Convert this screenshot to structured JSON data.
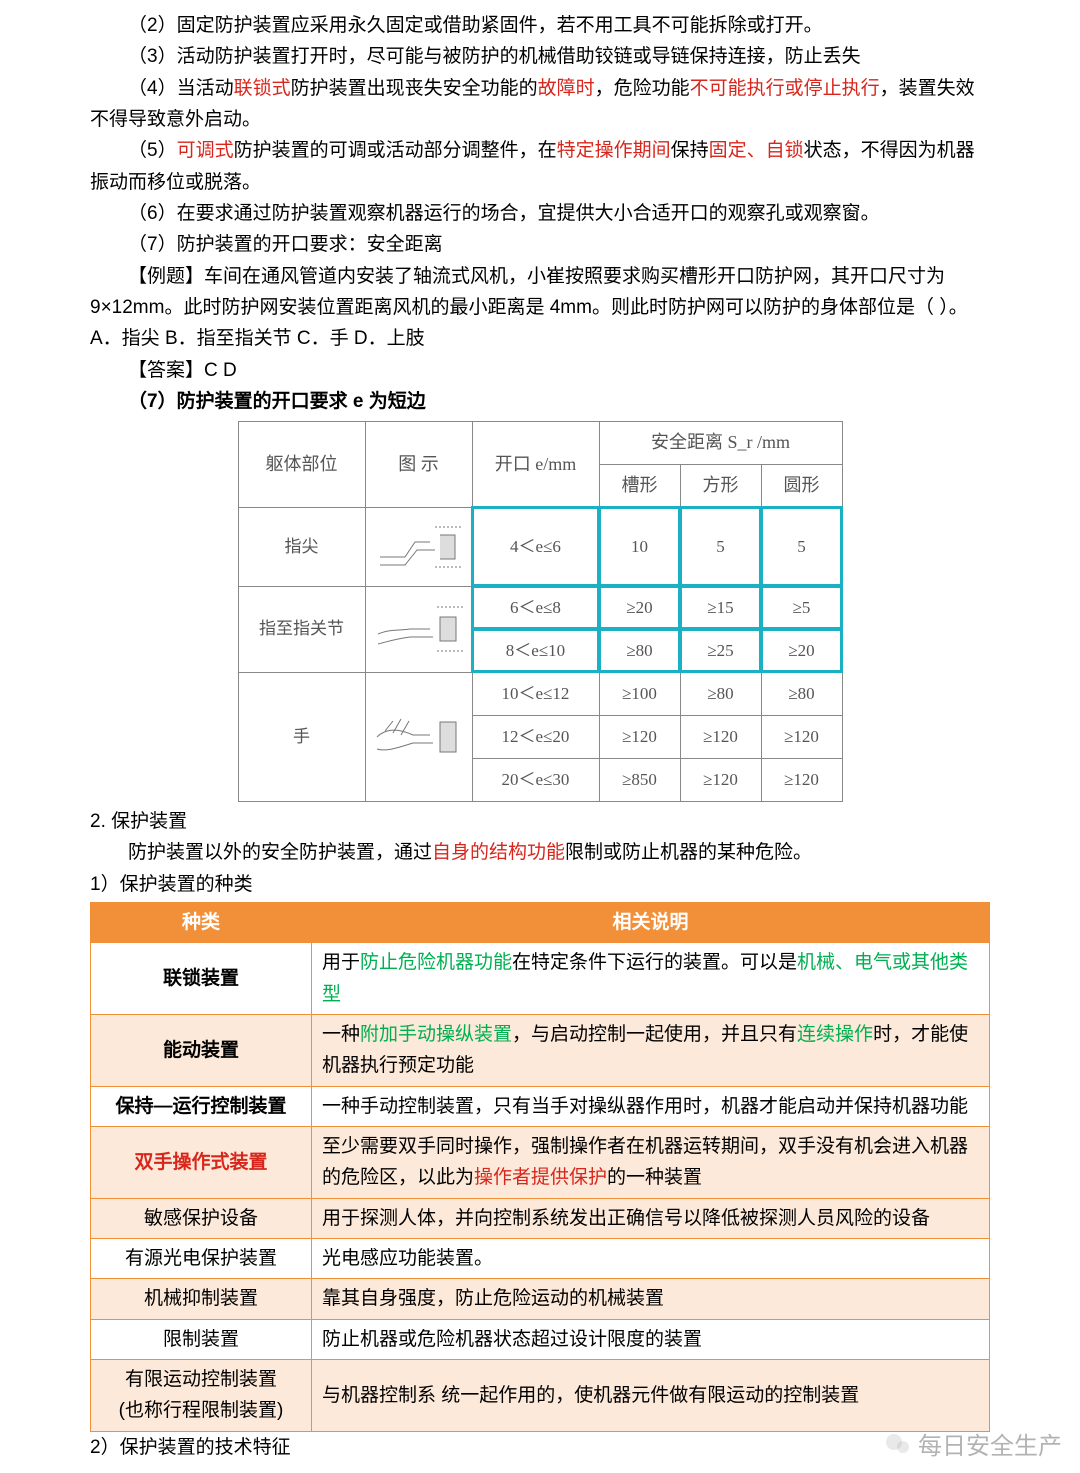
{
  "paragraphs": {
    "p2": "（2）固定防护装置应采用永久固定或借助紧固件，若不用工具不可能拆除或打开。",
    "p3": "（3）活动防护装置打开时，尽可能与被防护的机械借助铰链或导链保持连接，防止丢失",
    "p4a": "（4）当活动",
    "p4b": "联锁式",
    "p4c": "防护装置出现丧失安全功能的",
    "p4d": "故障时",
    "p4e": "，危险功能",
    "p4f": "不可能执行或停止执行",
    "p4g": "，装置失效不得导致意外启动。",
    "p5a": "（5）",
    "p5b": "可调式",
    "p5c": "防护装置的可调或活动部分调整件，在",
    "p5d": "特定操作期间",
    "p5e": "保持",
    "p5f": "固定、自锁",
    "p5g": "状态，不得因为机器振动而移位或脱落。",
    "p6": "（6）在要求通过防护装置观察机器运行的场合，宜提供大小合适开口的观察孔或观察窗。",
    "p7": "（7）防护装置的开口要求：安全距离",
    "ex1": "【例题】车间在通风管道内安装了轴流式风机，小崔按照要求购买槽形开口防护网，其开口尺寸为 9×12mm。此时防护网安装位置距离风机的最小距离是 4mm。则此时防护网可以防护的身体部位是（  ）。",
    "ex2": "A．指尖    B．指至指关节    C．手    D．上肢",
    "ans": "【答案】C D",
    "hdr7": "（7）防护装置的开口要求 e 为短边",
    "s2": "2. 保护装置",
    "s2a": "防护装置以外的安全防护装置，通过",
    "s2b": "自身的结构功能",
    "s2c": "限制或防止机器的某种危险。",
    "s2d": "1）保护装置的种类",
    "s2e": "2）保护装置的技术特征"
  },
  "sd_table": {
    "head": {
      "body": "躯体部位",
      "fig": "图  示",
      "e": "开口 e/mm",
      "sd": "安全距离 S_r /mm",
      "slot": "槽形",
      "square": "方形",
      "round": "圆形"
    },
    "rows_body": [
      "指尖",
      "指至指关节",
      "手"
    ],
    "cells": [
      [
        "4＜e≤6",
        "10",
        "5",
        "5"
      ],
      [
        "6＜e≤8",
        "≥20",
        "≥15",
        "≥5"
      ],
      [
        "8＜e≤10",
        "≥80",
        "≥25",
        "≥20"
      ],
      [
        "10＜e≤12",
        "≥100",
        "≥80",
        "≥80"
      ],
      [
        "12＜e≤20",
        "≥120",
        "≥120",
        "≥120"
      ],
      [
        "20＜e≤30",
        "≥850",
        "≥120",
        "≥120"
      ]
    ],
    "highlight_color": "#1bb0c4"
  },
  "cls_table": {
    "header": [
      "种类",
      "相关说明"
    ],
    "rows": [
      {
        "tint": false,
        "name": "联锁装置",
        "name_red": false,
        "desc_parts": [
          {
            "t": "用于",
            "c": null
          },
          {
            "t": "防止危险机器功能",
            "c": "green"
          },
          {
            "t": "在特定条件下运行的装置。可以是",
            "c": null
          },
          {
            "t": "机械、电气或其他类型",
            "c": "green"
          }
        ]
      },
      {
        "tint": true,
        "name": "能动装置",
        "name_red": false,
        "desc_parts": [
          {
            "t": "一种",
            "c": null
          },
          {
            "t": "附加手动操纵装置",
            "c": "green"
          },
          {
            "t": "，与启动控制一起使用，并且只有",
            "c": null
          },
          {
            "t": "连续操作",
            "c": "green"
          },
          {
            "t": "时，才能使机器执行预定功能",
            "c": null
          }
        ]
      },
      {
        "tint": false,
        "name": "保持—运行控制装置",
        "name_red": false,
        "desc_parts": [
          {
            "t": "一种手动控制装置，只有当手对操纵器作用时，机器才能启动并保持机器功能",
            "c": null
          }
        ]
      },
      {
        "tint": true,
        "name": "双手操作式装置",
        "name_red": true,
        "desc_parts": [
          {
            "t": "至少需要双手同时操作，强制操作者在机器运转期间，双手没有机会进入机器的危险区，以此为",
            "c": null
          },
          {
            "t": "操作者提供保护",
            "c": "red"
          },
          {
            "t": "的一种装置",
            "c": null
          }
        ]
      },
      {
        "tint": true,
        "name": "敏感保护设备",
        "name_red": false,
        "name_normal": true,
        "desc_parts": [
          {
            "t": "用于探测人体，并向控制系统发出正确信号以降低被探测人员风险的设备",
            "c": null
          }
        ]
      },
      {
        "tint": false,
        "name": "有源光电保护装置",
        "name_red": false,
        "name_normal": true,
        "desc_parts": [
          {
            "t": "光电感应功能装置。",
            "c": null
          }
        ]
      },
      {
        "tint": true,
        "name": "机械抑制装置",
        "name_red": false,
        "name_normal": true,
        "desc_parts": [
          {
            "t": "靠其自身强度，防止危险运动的机械装置",
            "c": null
          }
        ]
      },
      {
        "tint": false,
        "name": "限制装置",
        "name_red": false,
        "name_normal": true,
        "desc_parts": [
          {
            "t": "防止机器或危险机器状态超过设计限度的装置",
            "c": null
          }
        ]
      },
      {
        "tint": true,
        "name": "有限运动控制装置\n(也称行程限制装置)",
        "name_red": false,
        "name_normal": true,
        "desc_parts": [
          {
            "t": "与机器控制系  统一起作用的，使机器元件做有限运动的控制装置",
            "c": null
          }
        ]
      }
    ]
  },
  "watermark": "每日安全生产"
}
